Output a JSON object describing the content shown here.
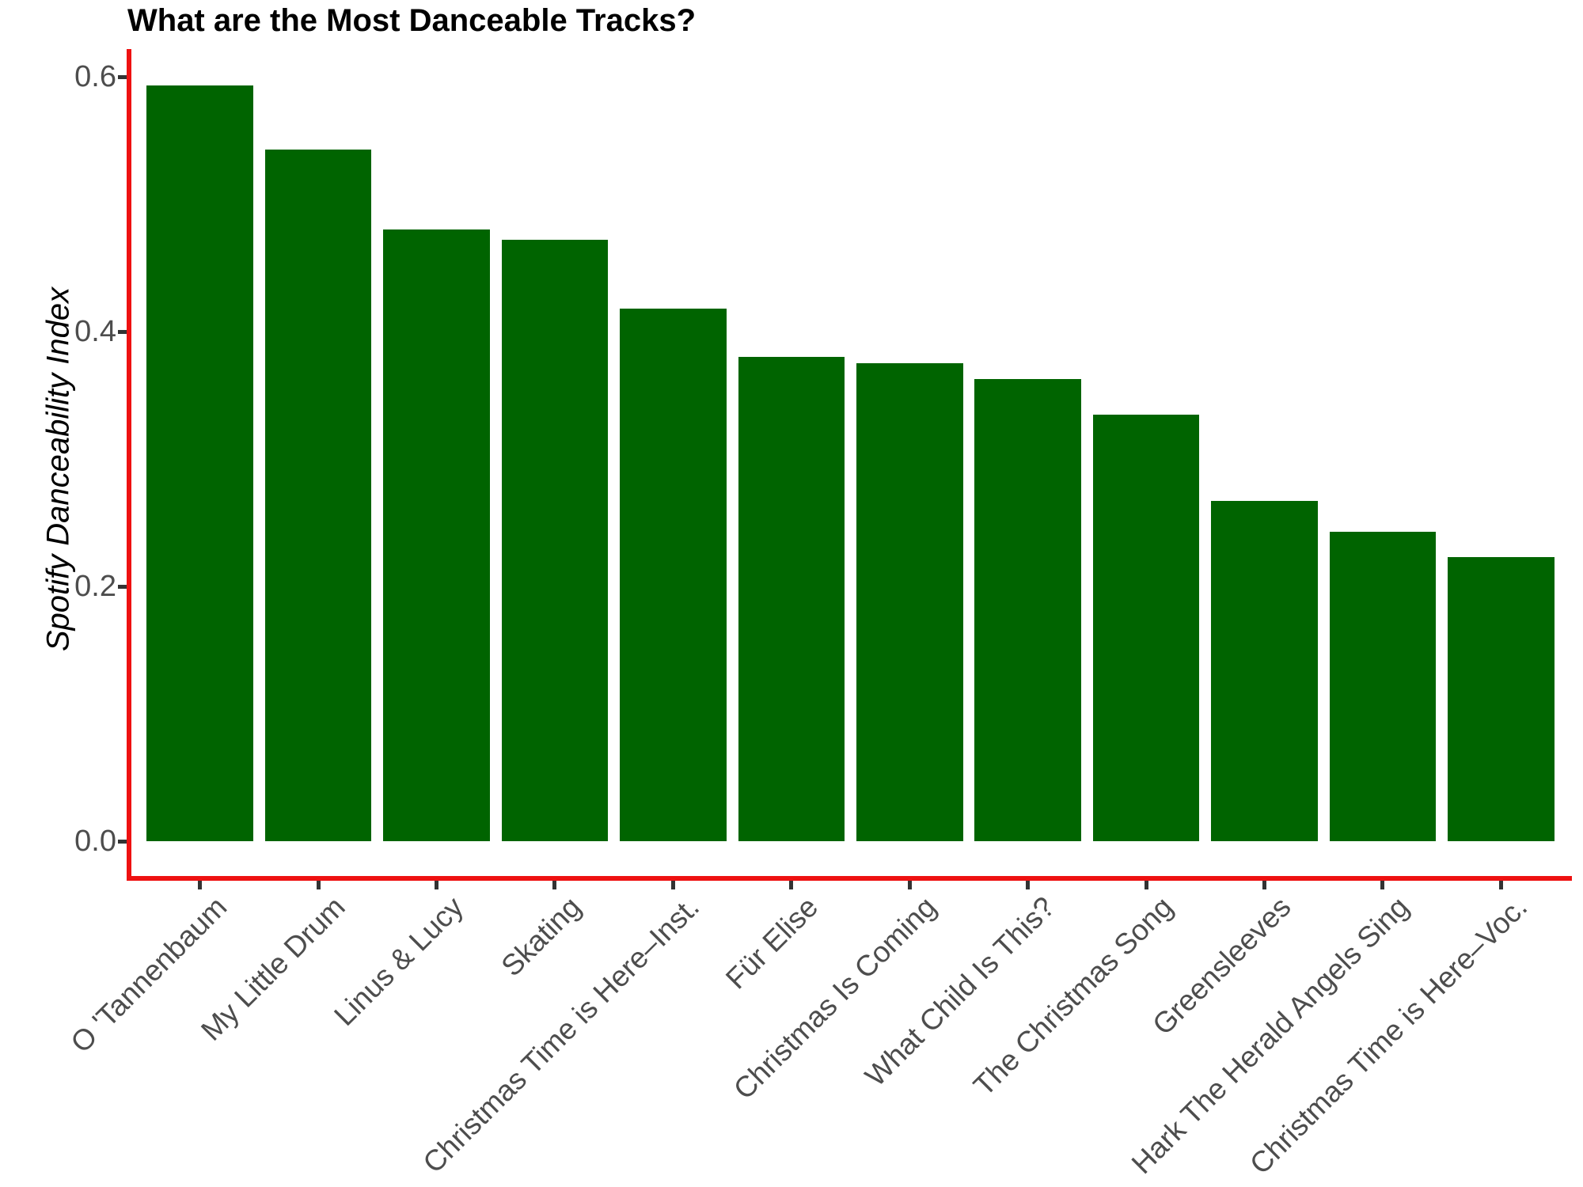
{
  "chart_data": {
    "type": "bar",
    "title": "What are the Most Danceable Tracks?",
    "xlabel": "",
    "ylabel": "Spotify Danceability Index",
    "categories": [
      "O 'Tannenbaum",
      "My Little Drum",
      "Linus & Lucy",
      "Skating",
      "Christmas Time is Here–Inst.",
      "Für Elise",
      "Christmas Is Coming",
      "What Child Is This?",
      "The Christmas Song",
      "Greensleeves",
      "Hark The Herald Angels Sing",
      "Christmas Time is Here–Voc."
    ],
    "values": [
      0.593,
      0.543,
      0.48,
      0.472,
      0.418,
      0.38,
      0.375,
      0.363,
      0.335,
      0.267,
      0.243,
      0.223
    ],
    "yticks": [
      0.0,
      0.2,
      0.4,
      0.6
    ],
    "ytick_labels": [
      "0.0",
      "0.2",
      "0.4",
      "0.6"
    ],
    "ylim": [
      0,
      0.62
    ],
    "x_label_angle": 45,
    "grid": "off",
    "legend": "none",
    "bar_color": "#006400",
    "axis_line_color": "#EE1111",
    "tick_mark_color": "#333333",
    "tick_label_color": "#4D4D4D",
    "title_color": "#000000"
  }
}
